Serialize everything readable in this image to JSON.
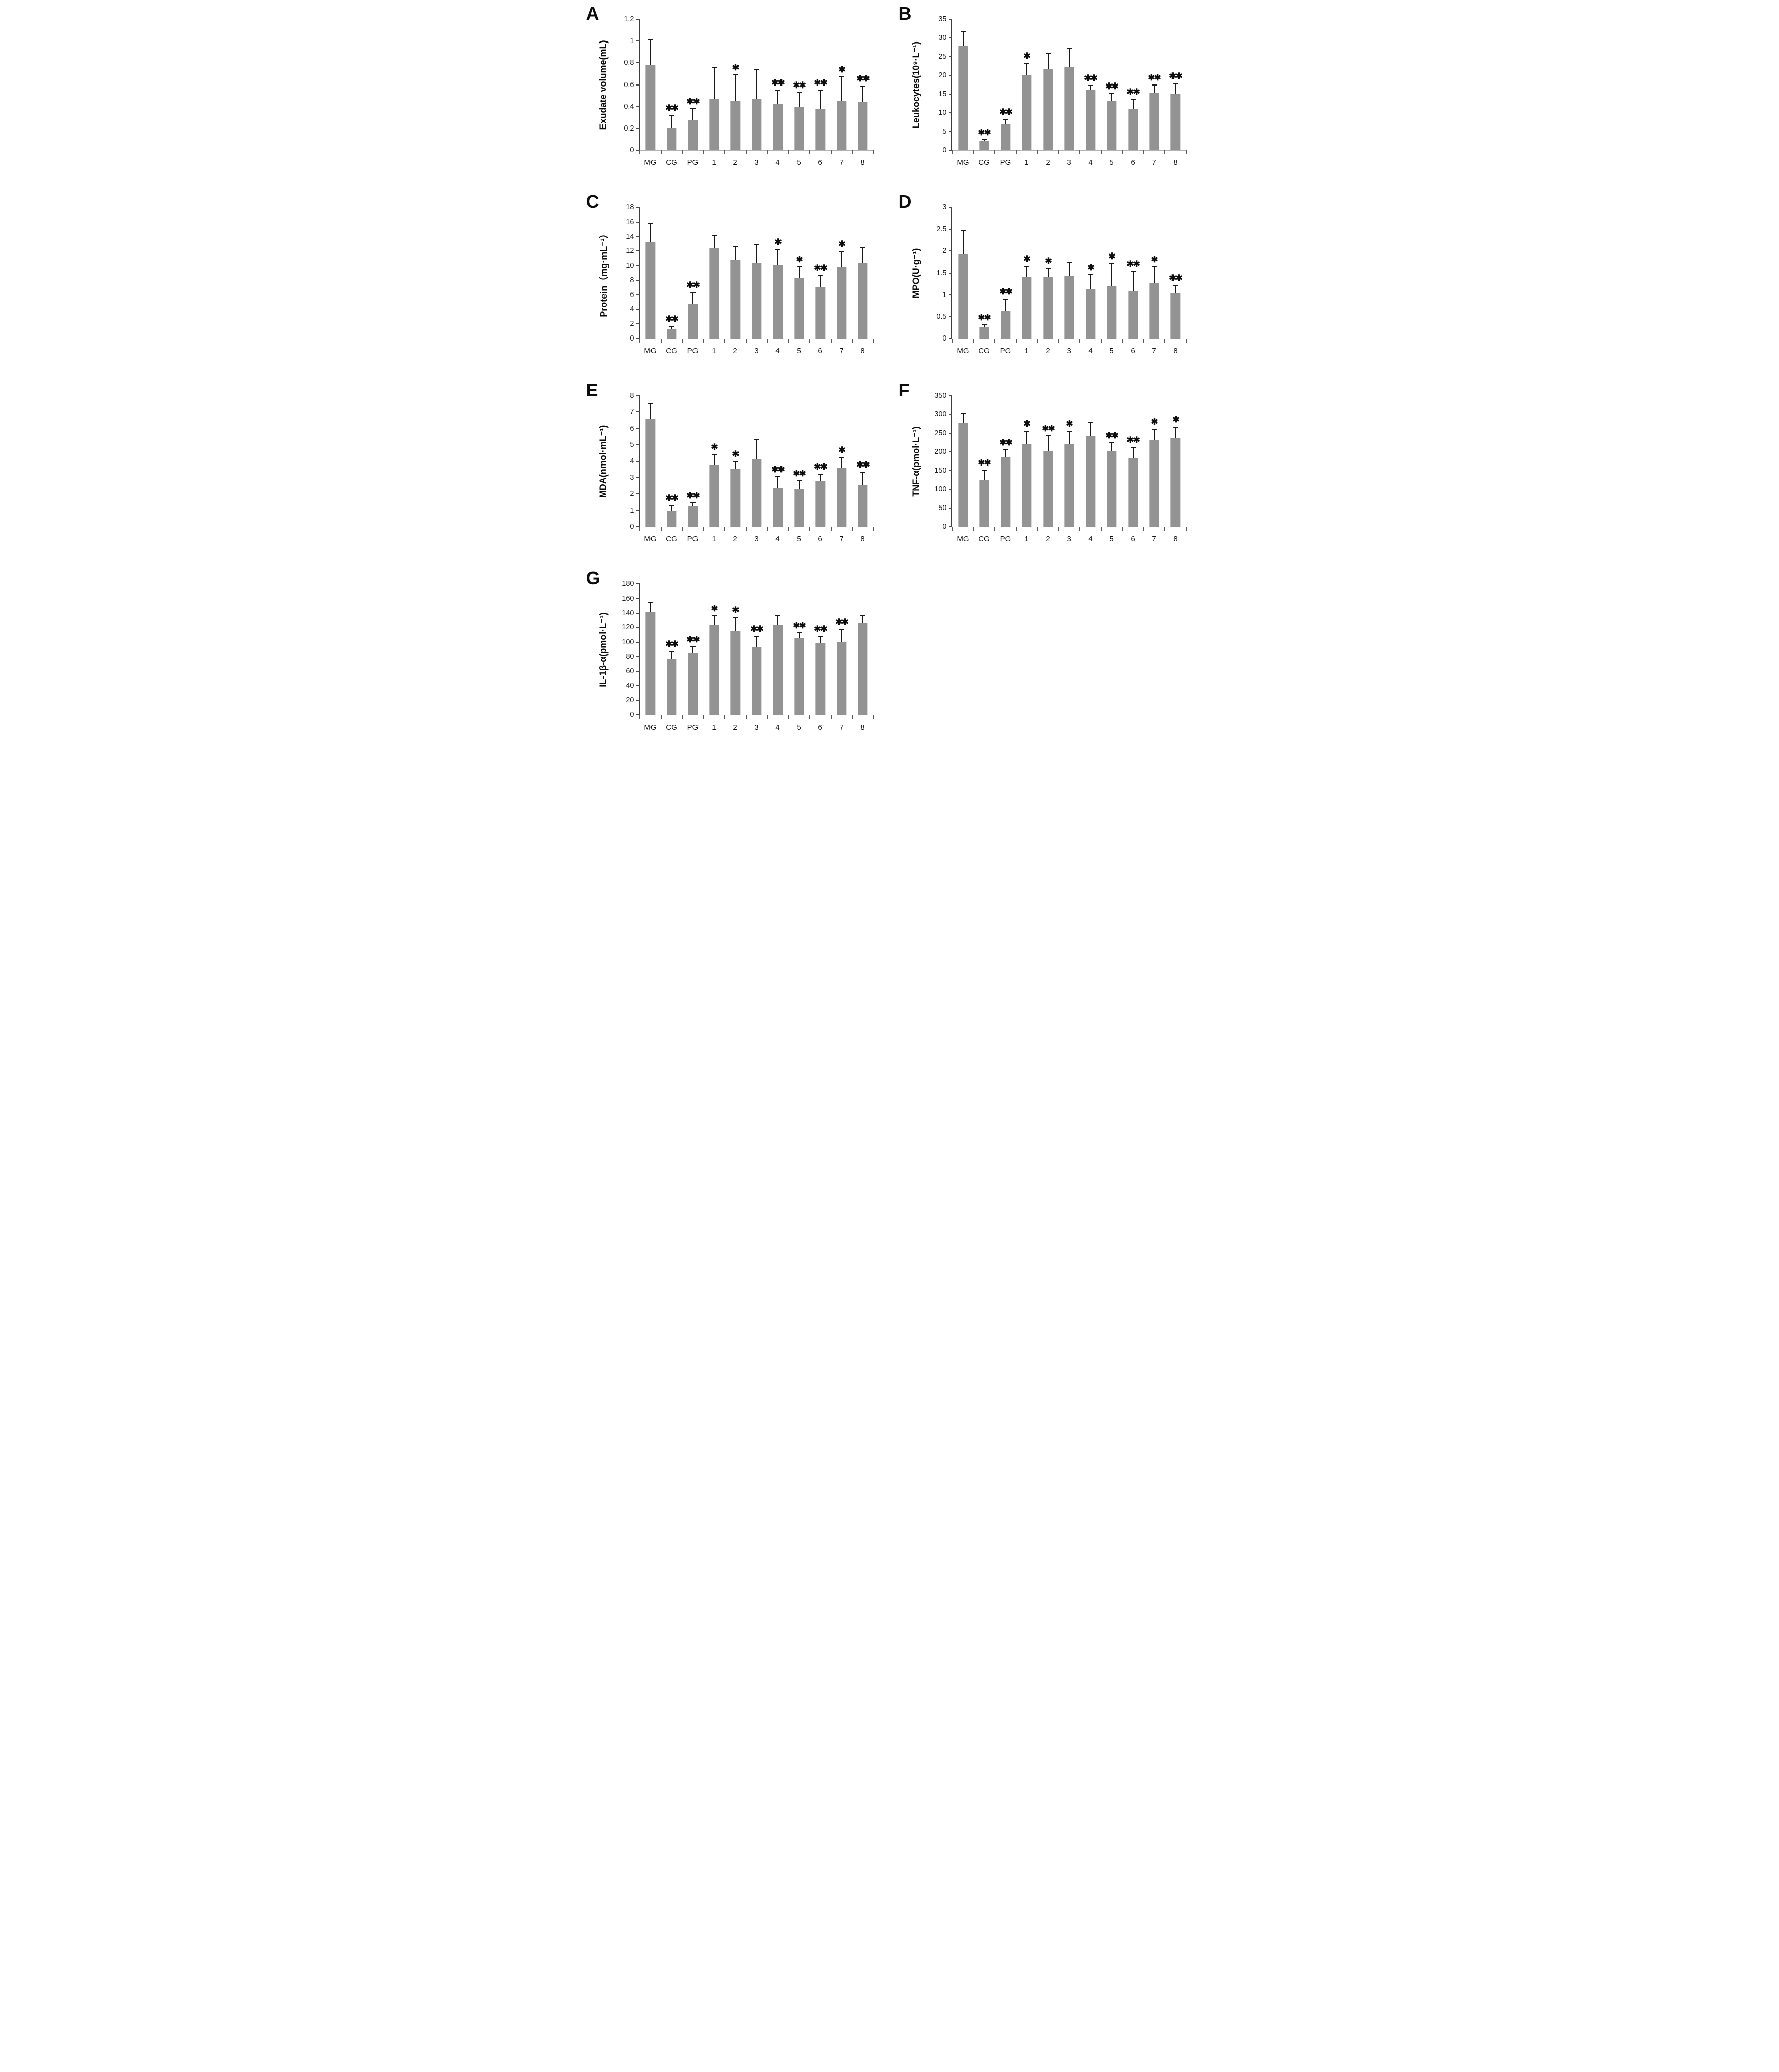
{
  "style": {
    "bar_color": "#939393",
    "error_bar_color": "#1b1b1b",
    "axis_color": "#3d3d3d",
    "baseline_color": "#b2b2b2",
    "text_color": "#111111"
  },
  "chart_data": [
    {
      "type": "bar",
      "panel": "A",
      "ylabel": "Exudate volume(mL)",
      "ylim": [
        0,
        1.2
      ],
      "yticks": [
        "0",
        "0.2",
        "0.4",
        "0.6",
        "0.8",
        "1",
        "1.2"
      ],
      "categories": [
        "MG",
        "CG",
        "PG",
        "1",
        "2",
        "3",
        "4",
        "5",
        "6",
        "7",
        "8"
      ],
      "values": [
        0.78,
        0.21,
        0.28,
        0.47,
        0.45,
        0.47,
        0.42,
        0.4,
        0.38,
        0.45,
        0.44
      ],
      "errors": [
        0.23,
        0.11,
        0.1,
        0.29,
        0.24,
        0.27,
        0.13,
        0.13,
        0.17,
        0.22,
        0.15
      ],
      "sig": [
        "",
        "**",
        "**",
        "",
        "*",
        "",
        "**",
        "**",
        "**",
        "*",
        "**"
      ],
      "grid": false,
      "legend": "none"
    },
    {
      "type": "bar",
      "panel": "B",
      "ylabel": "Leukocytes(10⁹·L⁻¹)",
      "ylim": [
        0,
        35
      ],
      "yticks": [
        "0",
        "5",
        "10",
        "15",
        "20",
        "25",
        "30",
        "35"
      ],
      "categories": [
        "MG",
        "CG",
        "PG",
        "1",
        "2",
        "3",
        "4",
        "5",
        "6",
        "7",
        "8"
      ],
      "values": [
        28.0,
        2.5,
        7.0,
        20.1,
        21.7,
        22.2,
        16.2,
        13.2,
        11.1,
        15.4,
        15.1
      ],
      "errors": [
        3.7,
        0.4,
        1.3,
        3.1,
        4.3,
        4.9,
        1.1,
        2.0,
        2.6,
        2.0,
        2.8
      ],
      "sig": [
        "",
        "**",
        "**",
        "*",
        "",
        "",
        "**",
        "**",
        "**",
        "**",
        "**"
      ],
      "grid": false,
      "legend": "none"
    },
    {
      "type": "bar",
      "panel": "C",
      "ylabel": "Protein（mg·mL⁻¹）",
      "ylim": [
        0,
        18
      ],
      "yticks": [
        "0",
        "2",
        "4",
        "6",
        "8",
        "10",
        "12",
        "14",
        "16",
        "18"
      ],
      "categories": [
        "MG",
        "CG",
        "PG",
        "1",
        "2",
        "3",
        "4",
        "5",
        "6",
        "7",
        "8"
      ],
      "values": [
        13.3,
        1.35,
        4.75,
        12.45,
        10.75,
        10.4,
        10.05,
        8.3,
        7.1,
        9.85,
        10.35
      ],
      "errors": [
        2.5,
        0.3,
        1.55,
        1.75,
        1.9,
        2.5,
        2.2,
        1.6,
        1.6,
        2.1,
        2.15
      ],
      "sig": [
        "",
        "**",
        "**",
        "",
        "",
        "",
        "*",
        "*",
        "**",
        "*",
        ""
      ],
      "grid": false,
      "legend": "none"
    },
    {
      "type": "bar",
      "panel": "D",
      "ylabel": "MPO(U·g⁻¹)",
      "ylim": [
        0,
        3
      ],
      "yticks": [
        "0",
        "0.5",
        "1",
        "1.5",
        "2",
        "2.5",
        "3"
      ],
      "categories": [
        "MG",
        "CG",
        "PG",
        "1",
        "2",
        "3",
        "4",
        "5",
        "6",
        "7",
        "8"
      ],
      "values": [
        1.94,
        0.26,
        0.63,
        1.41,
        1.4,
        1.42,
        1.12,
        1.19,
        1.09,
        1.28,
        1.04
      ],
      "errors": [
        0.53,
        0.05,
        0.27,
        0.25,
        0.21,
        0.33,
        0.34,
        0.52,
        0.45,
        0.36,
        0.18
      ],
      "sig": [
        "",
        "**",
        "**",
        "*",
        "*",
        "",
        "*",
        "*",
        "**",
        "*",
        "**"
      ],
      "grid": false,
      "legend": "none"
    },
    {
      "type": "bar",
      "panel": "E",
      "ylabel": "MDA(nmol·mL⁻¹)",
      "ylim": [
        0,
        8
      ],
      "yticks": [
        "0",
        "1",
        "2",
        "3",
        "4",
        "5",
        "6",
        "7",
        "8"
      ],
      "categories": [
        "MG",
        "CG",
        "PG",
        "1",
        "2",
        "3",
        "4",
        "5",
        "6",
        "7",
        "8"
      ],
      "values": [
        6.55,
        0.98,
        1.24,
        3.78,
        3.52,
        4.12,
        2.37,
        2.3,
        2.82,
        3.6,
        2.55
      ],
      "errors": [
        1.0,
        0.32,
        0.2,
        0.64,
        0.46,
        1.2,
        0.68,
        0.5,
        0.38,
        0.62,
        0.8
      ],
      "sig": [
        "",
        "**",
        "**",
        "*",
        "*",
        "",
        "**",
        "**",
        "**",
        "*",
        "**"
      ],
      "grid": false,
      "legend": "none"
    },
    {
      "type": "bar",
      "panel": "F",
      "ylabel": "TNF-α(pmol·L⁻¹)",
      "ylim": [
        0,
        350
      ],
      "yticks": [
        "0",
        "50",
        "100",
        "150",
        "200",
        "250",
        "300",
        "350"
      ],
      "categories": [
        "MG",
        "CG",
        "PG",
        "1",
        "2",
        "3",
        "4",
        "5",
        "6",
        "7",
        "8"
      ],
      "values": [
        277,
        124,
        185,
        220,
        203,
        221,
        242,
        202,
        182,
        232,
        236
      ],
      "errors": [
        24,
        27,
        20,
        36,
        40,
        35,
        36,
        22,
        30,
        29,
        30
      ],
      "sig": [
        "",
        "**",
        "**",
        "*",
        "**",
        "*",
        "",
        "**",
        "**",
        "*",
        "*"
      ],
      "grid": false,
      "legend": "none"
    },
    {
      "type": "bar",
      "panel": "G",
      "ylabel": "IL-1β-α(pmol·L⁻¹)",
      "ylim": [
        0,
        180
      ],
      "yticks": [
        "0",
        "20",
        "40",
        "60",
        "80",
        "100",
        "120",
        "140",
        "160",
        "180"
      ],
      "categories": [
        "MG",
        "CG",
        "PG",
        "1",
        "2",
        "3",
        "4",
        "5",
        "6",
        "7",
        "8"
      ],
      "values": [
        141.5,
        77,
        84.5,
        124,
        115,
        94,
        123.5,
        106.5,
        99.5,
        101,
        126
      ],
      "errors": [
        13.5,
        10.5,
        9,
        12,
        19,
        13.5,
        13,
        6,
        8,
        16.5,
        10
      ],
      "sig": [
        "",
        "**",
        "**",
        "*",
        "*",
        "**",
        "",
        "**",
        "**",
        "**",
        ""
      ],
      "grid": false,
      "legend": "none"
    }
  ]
}
